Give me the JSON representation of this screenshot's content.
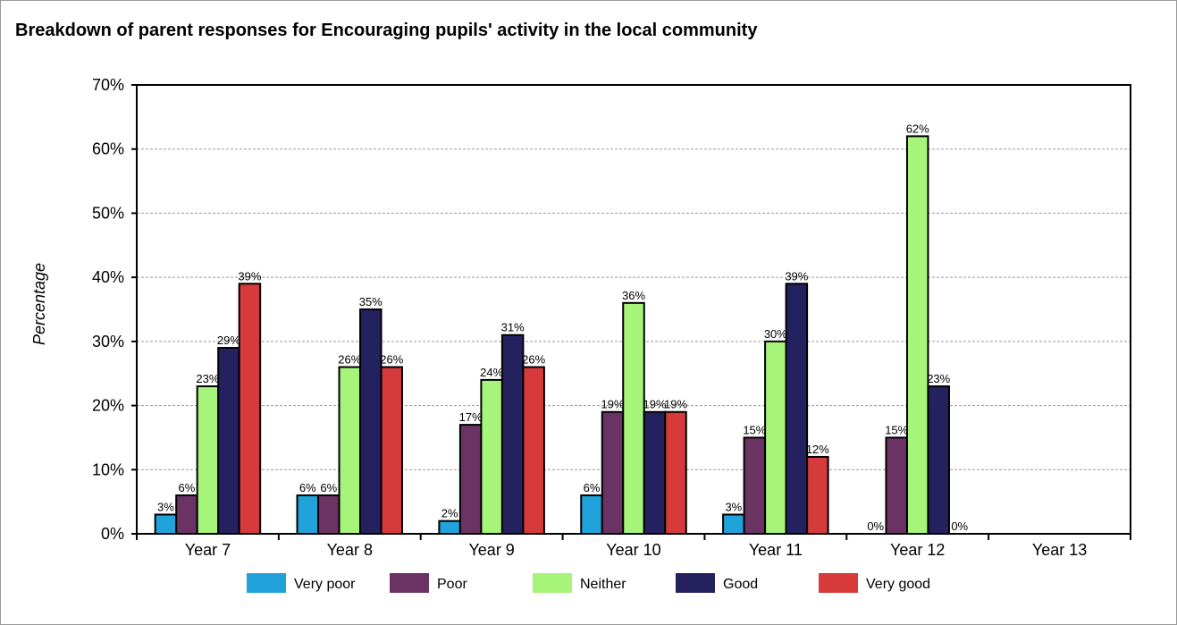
{
  "chart_data": {
    "type": "bar",
    "title": "Breakdown of parent responses for Encouraging pupils' activity in the local community",
    "ylabel": "Percentage",
    "xlabel": "",
    "ylim": [
      0,
      70
    ],
    "yticks": [
      "0%",
      "10%",
      "20%",
      "30%",
      "40%",
      "50%",
      "60%",
      "70%"
    ],
    "categories": [
      "Year 7",
      "Year 8",
      "Year 9",
      "Year 10",
      "Year 11",
      "Year 12",
      "Year 13"
    ],
    "series": [
      {
        "name": "Very poor",
        "color": "#1fa3da",
        "values": [
          3,
          6,
          2,
          6,
          3,
          0,
          null
        ],
        "labels": [
          "3%",
          "6%",
          "2%",
          "6%",
          "3%",
          "0%",
          ""
        ]
      },
      {
        "name": "Poor",
        "color": "#6b3264",
        "values": [
          6,
          6,
          17,
          19,
          15,
          15,
          null
        ],
        "labels": [
          "6%",
          "6%",
          "17%",
          "19%",
          "15%",
          "15%",
          ""
        ]
      },
      {
        "name": "Neither",
        "color": "#a6f57a",
        "values": [
          23,
          26,
          24,
          36,
          30,
          62,
          null
        ],
        "labels": [
          "23%",
          "26%",
          "24%",
          "36%",
          "30%",
          "62%",
          ""
        ]
      },
      {
        "name": "Good",
        "color": "#24215f",
        "values": [
          29,
          35,
          31,
          19,
          39,
          23,
          null
        ],
        "labels": [
          "29%",
          "35%",
          "31%",
          "19%",
          "39%",
          "23%",
          ""
        ]
      },
      {
        "name": "Very good",
        "color": "#d63a3a",
        "values": [
          39,
          26,
          26,
          19,
          12,
          0,
          null
        ],
        "labels": [
          "39%",
          "26%",
          "26%",
          "19%",
          "12%",
          "0%",
          ""
        ]
      }
    ],
    "grid": true,
    "legend": "bottom"
  }
}
